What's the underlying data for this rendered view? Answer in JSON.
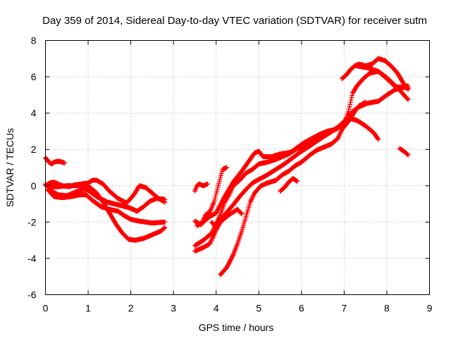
{
  "chart_data": {
    "type": "scatter",
    "title": "Day 359 of 2014, Sidereal Day-to-day VTEC variation (SDTVAR) for receiver sutm",
    "xlabel": "GPS time / hours",
    "ylabel": "SDTVAR / TECUs",
    "xlim": [
      0,
      9
    ],
    "ylim": [
      -6,
      8
    ],
    "xticks": [
      0,
      1,
      2,
      3,
      4,
      5,
      6,
      7,
      8,
      9
    ],
    "yticks": [
      -6,
      -4,
      -2,
      0,
      2,
      4,
      6,
      8
    ],
    "xtick_labels": [
      "0",
      "1",
      "2",
      "3",
      "4",
      "5",
      "6",
      "7",
      "8",
      "9"
    ],
    "ytick_labels": [
      "-6",
      "-4",
      "-2",
      "0",
      "2",
      "4",
      "6",
      "8"
    ],
    "grid": true,
    "legend": "none",
    "marker": "plus",
    "color": "#ff0000",
    "series": [
      {
        "name": "s1",
        "points": [
          [
            0.0,
            1.55
          ],
          [
            0.08,
            1.3
          ],
          [
            0.15,
            1.2
          ],
          [
            0.2,
            1.3
          ],
          [
            0.3,
            1.35
          ],
          [
            0.4,
            1.3
          ],
          [
            0.45,
            1.25
          ]
        ]
      },
      {
        "name": "s2",
        "points": [
          [
            0.0,
            0.0
          ],
          [
            0.1,
            0.15
          ],
          [
            0.2,
            0.2
          ],
          [
            0.3,
            0.1
          ],
          [
            0.4,
            0.0
          ],
          [
            0.55,
            -0.05
          ],
          [
            0.7,
            0.05
          ],
          [
            0.85,
            0.1
          ],
          [
            1.0,
            0.15
          ],
          [
            1.1,
            0.3
          ],
          [
            1.2,
            0.3
          ],
          [
            1.35,
            0.1
          ],
          [
            1.5,
            -0.3
          ],
          [
            1.7,
            -0.7
          ],
          [
            1.9,
            -0.95
          ],
          [
            2.0,
            -0.7
          ],
          [
            2.1,
            -0.4
          ],
          [
            2.2,
            0.0
          ],
          [
            2.35,
            -0.1
          ],
          [
            2.5,
            -0.4
          ],
          [
            2.65,
            -0.7
          ],
          [
            2.8,
            -0.9
          ]
        ]
      },
      {
        "name": "s3",
        "points": [
          [
            0.0,
            0.1
          ],
          [
            0.15,
            -0.3
          ],
          [
            0.3,
            -0.5
          ],
          [
            0.5,
            -0.55
          ],
          [
            0.7,
            -0.35
          ],
          [
            0.9,
            -0.2
          ],
          [
            1.0,
            -0.25
          ],
          [
            1.2,
            -0.6
          ],
          [
            1.45,
            -0.9
          ],
          [
            1.7,
            -1.05
          ],
          [
            1.95,
            -1.2
          ],
          [
            2.15,
            -1.4
          ],
          [
            2.3,
            -1.15
          ],
          [
            2.45,
            -0.85
          ],
          [
            2.6,
            -0.7
          ],
          [
            2.8,
            -0.75
          ]
        ]
      },
      {
        "name": "s4",
        "points": [
          [
            0.05,
            -0.2
          ],
          [
            0.2,
            -0.6
          ],
          [
            0.4,
            -0.65
          ],
          [
            0.6,
            -0.6
          ],
          [
            0.8,
            -0.5
          ],
          [
            0.95,
            -0.5
          ],
          [
            1.1,
            -0.8
          ],
          [
            1.3,
            -1.15
          ],
          [
            1.5,
            -1.3
          ],
          [
            1.7,
            -1.4
          ],
          [
            1.85,
            -1.65
          ],
          [
            2.0,
            -1.85
          ],
          [
            2.2,
            -1.95
          ],
          [
            2.5,
            -2.05
          ],
          [
            2.8,
            -2.0
          ]
        ]
      },
      {
        "name": "s5",
        "points": [
          [
            0.1,
            -0.05
          ],
          [
            0.3,
            -0.05
          ],
          [
            0.5,
            0.0
          ],
          [
            0.7,
            0.0
          ],
          [
            0.9,
            0.0
          ],
          [
            1.05,
            -0.1
          ],
          [
            1.2,
            -0.4
          ],
          [
            1.35,
            -0.9
          ],
          [
            1.5,
            -1.5
          ],
          [
            1.65,
            -2.1
          ],
          [
            1.8,
            -2.6
          ],
          [
            1.95,
            -2.95
          ],
          [
            2.1,
            -3.0
          ],
          [
            2.3,
            -2.9
          ],
          [
            2.5,
            -2.7
          ],
          [
            2.7,
            -2.5
          ],
          [
            2.8,
            -2.3
          ]
        ]
      },
      {
        "name": "s6",
        "points": [
          [
            3.5,
            -0.3
          ],
          [
            3.55,
            0.0
          ],
          [
            3.6,
            0.1
          ],
          [
            3.7,
            0.0
          ],
          [
            3.8,
            0.1
          ]
        ]
      },
      {
        "name": "s7",
        "points": [
          [
            3.5,
            -1.95
          ],
          [
            3.65,
            -2.15
          ],
          [
            3.75,
            -1.6
          ],
          [
            3.85,
            -1.45
          ],
          [
            3.95,
            -0.9
          ],
          [
            4.05,
            0.0
          ],
          [
            4.15,
            0.9
          ],
          [
            4.25,
            1.0
          ]
        ]
      },
      {
        "name": "s8",
        "points": [
          [
            3.5,
            -3.3
          ],
          [
            3.7,
            -3.0
          ],
          [
            3.9,
            -2.6
          ],
          [
            4.0,
            -2.1
          ],
          [
            4.1,
            -1.6
          ],
          [
            4.2,
            -0.9
          ],
          [
            4.3,
            -0.5
          ],
          [
            4.4,
            0.0
          ],
          [
            4.55,
            0.3
          ],
          [
            4.7,
            0.7
          ],
          [
            4.85,
            0.9
          ],
          [
            5.0,
            1.2
          ],
          [
            5.2,
            1.3
          ],
          [
            5.4,
            1.45
          ],
          [
            5.55,
            1.6
          ],
          [
            5.7,
            1.75
          ],
          [
            5.9,
            2.05
          ],
          [
            6.1,
            2.25
          ],
          [
            6.3,
            2.55
          ],
          [
            6.5,
            2.75
          ],
          [
            6.7,
            3.0
          ],
          [
            6.9,
            3.3
          ],
          [
            7.0,
            3.55
          ],
          [
            7.15,
            3.7
          ],
          [
            7.3,
            3.6
          ],
          [
            7.5,
            3.3
          ],
          [
            7.7,
            2.9
          ],
          [
            7.8,
            2.55
          ]
        ]
      },
      {
        "name": "s9",
        "points": [
          [
            3.5,
            -3.6
          ],
          [
            3.7,
            -3.4
          ],
          [
            3.85,
            -3.2
          ],
          [
            3.95,
            -2.7
          ],
          [
            4.05,
            -2.2
          ],
          [
            4.2,
            -1.6
          ],
          [
            4.4,
            -1.05
          ],
          [
            4.55,
            -0.6
          ],
          [
            4.7,
            -0.2
          ],
          [
            4.85,
            0.15
          ],
          [
            5.0,
            0.35
          ],
          [
            5.2,
            0.6
          ],
          [
            5.4,
            0.9
          ],
          [
            5.6,
            1.2
          ],
          [
            5.8,
            1.55
          ],
          [
            6.0,
            1.9
          ],
          [
            6.2,
            2.2
          ],
          [
            6.45,
            2.6
          ],
          [
            6.65,
            2.9
          ],
          [
            6.85,
            3.2
          ],
          [
            7.0,
            3.55
          ],
          [
            7.1,
            3.8
          ],
          [
            7.2,
            4.1
          ],
          [
            7.35,
            4.35
          ],
          [
            7.55,
            4.55
          ],
          [
            7.8,
            4.65
          ],
          [
            8.0,
            5.0
          ],
          [
            8.2,
            5.3
          ],
          [
            8.5,
            5.5
          ]
        ]
      },
      {
        "name": "s10",
        "points": [
          [
            3.55,
            -2.2
          ],
          [
            3.7,
            -2.0
          ],
          [
            3.85,
            -1.7
          ],
          [
            4.0,
            -1.5
          ],
          [
            4.2,
            -0.6
          ],
          [
            4.4,
            0.2
          ],
          [
            4.6,
            0.8
          ],
          [
            4.75,
            1.3
          ],
          [
            4.9,
            1.8
          ],
          [
            5.0,
            1.9
          ],
          [
            5.1,
            1.6
          ],
          [
            5.3,
            1.6
          ],
          [
            5.5,
            1.75
          ],
          [
            5.65,
            1.8
          ],
          [
            5.75,
            1.85
          ],
          [
            5.9,
            2.1
          ],
          [
            6.05,
            2.35
          ],
          [
            6.2,
            2.55
          ],
          [
            6.4,
            2.8
          ],
          [
            6.6,
            3.0
          ],
          [
            6.8,
            3.1
          ],
          [
            7.0,
            3.4
          ],
          [
            7.1,
            4.1
          ],
          [
            7.2,
            5.1
          ],
          [
            7.3,
            5.5
          ],
          [
            7.45,
            5.9
          ],
          [
            7.6,
            6.2
          ],
          [
            7.8,
            6.3
          ],
          [
            8.0,
            5.9
          ],
          [
            8.2,
            5.45
          ],
          [
            8.5,
            5.4
          ]
        ]
      },
      {
        "name": "s11",
        "points": [
          [
            4.1,
            -4.9
          ],
          [
            4.25,
            -4.5
          ],
          [
            4.4,
            -3.8
          ],
          [
            4.5,
            -3.2
          ],
          [
            4.6,
            -2.5
          ],
          [
            4.7,
            -1.7
          ],
          [
            4.8,
            -0.9
          ],
          [
            4.9,
            -0.4
          ],
          [
            5.05,
            0.0
          ],
          [
            5.2,
            0.15
          ],
          [
            5.4,
            0.3
          ],
          [
            5.55,
            0.6
          ],
          [
            5.7,
            0.8
          ],
          [
            5.85,
            1.1
          ],
          [
            6.0,
            1.3
          ],
          [
            6.2,
            1.7
          ],
          [
            6.35,
            1.95
          ],
          [
            6.5,
            2.1
          ],
          [
            6.7,
            2.3
          ],
          [
            6.85,
            2.6
          ],
          [
            6.95,
            3.1
          ],
          [
            7.05,
            3.4
          ],
          [
            7.15,
            3.7
          ],
          [
            7.25,
            4.1
          ],
          [
            7.35,
            4.4
          ],
          [
            7.5,
            4.6
          ]
        ]
      },
      {
        "name": "s12",
        "points": [
          [
            3.9,
            -2.0
          ],
          [
            4.0,
            -2.3
          ],
          [
            4.1,
            -2.0
          ],
          [
            4.2,
            -1.8
          ],
          [
            4.3,
            -1.6
          ],
          [
            4.4,
            -1.45
          ],
          [
            4.5,
            -1.3
          ],
          [
            4.6,
            -1.55
          ]
        ]
      },
      {
        "name": "s13",
        "points": [
          [
            5.5,
            -0.3
          ],
          [
            5.6,
            -0.1
          ],
          [
            5.7,
            0.2
          ],
          [
            5.8,
            0.4
          ],
          [
            5.9,
            0.25
          ]
        ]
      },
      {
        "name": "s14",
        "points": [
          [
            6.95,
            5.9
          ],
          [
            7.05,
            6.1
          ],
          [
            7.15,
            6.4
          ],
          [
            7.25,
            6.6
          ],
          [
            7.35,
            6.7
          ],
          [
            7.5,
            6.6
          ],
          [
            7.65,
            6.7
          ],
          [
            7.8,
            7.0
          ],
          [
            7.95,
            6.9
          ],
          [
            8.1,
            6.6
          ],
          [
            8.25,
            6.2
          ],
          [
            8.4,
            5.6
          ],
          [
            8.5,
            5.3
          ]
        ]
      },
      {
        "name": "s15",
        "points": [
          [
            7.3,
            6.6
          ],
          [
            7.55,
            6.5
          ],
          [
            7.8,
            6.3
          ],
          [
            8.0,
            5.95
          ],
          [
            8.25,
            5.4
          ],
          [
            8.4,
            5.0
          ],
          [
            8.5,
            4.75
          ]
        ]
      },
      {
        "name": "s16",
        "points": [
          [
            8.3,
            2.05
          ],
          [
            8.4,
            1.9
          ],
          [
            8.5,
            1.7
          ]
        ]
      }
    ]
  }
}
